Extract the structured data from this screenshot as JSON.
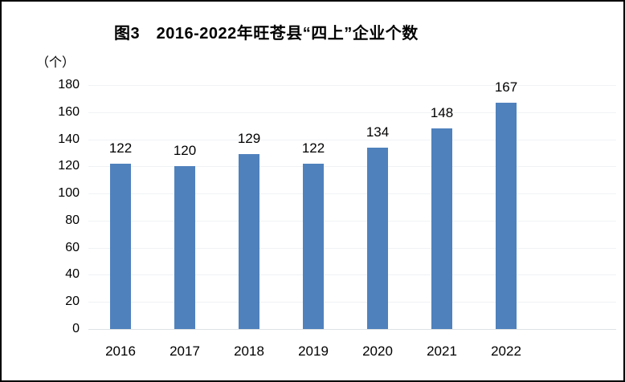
{
  "title": "图3　2016-2022年旺苍县“四上”企业个数",
  "y_unit": "（个）",
  "colors": {
    "bar": "#4F81BD",
    "gridline": "#F0F2F4",
    "axis_line": "#DFE2E5",
    "text": "#000000",
    "border": "#000000"
  },
  "chart_data": {
    "type": "bar",
    "title": "图3　2016-2022年旺苍县“四上”企业个数",
    "categories": [
      "2016",
      "2017",
      "2018",
      "2019",
      "2020",
      "2021",
      "2022"
    ],
    "values": [
      122,
      120,
      129,
      122,
      134,
      148,
      167
    ],
    "data_labels": [
      "122",
      "120",
      "129",
      "122",
      "134",
      "148",
      "167"
    ],
    "xlabel": "",
    "ylabel": "（个）",
    "ylim": [
      0,
      180
    ],
    "ytick_step": 20,
    "ytick_labels": [
      "0",
      "20",
      "40",
      "60",
      "80",
      "100",
      "120",
      "140",
      "160",
      "180"
    ],
    "grid": true,
    "legend_position": "none"
  }
}
